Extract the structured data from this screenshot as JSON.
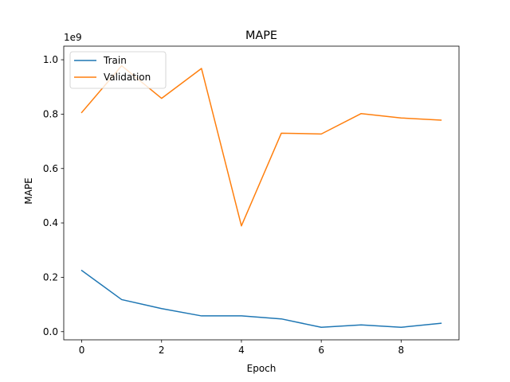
{
  "chart_data": {
    "type": "line",
    "title": "MAPE",
    "xlabel": "Epoch",
    "ylabel": "MAPE",
    "y_offset_label": "1e9",
    "x": [
      0,
      1,
      2,
      3,
      4,
      5,
      6,
      7,
      8,
      9
    ],
    "xlim": [
      -0.45,
      9.45
    ],
    "ylim": [
      -0.03,
      1.05
    ],
    "x_ticks": [
      0,
      2,
      4,
      6,
      8
    ],
    "x_tick_labels": [
      "0",
      "2",
      "4",
      "6",
      "8"
    ],
    "y_ticks": [
      0.0,
      0.2,
      0.4,
      0.6,
      0.8,
      1.0
    ],
    "y_tick_labels": [
      "0.0",
      "0.2",
      "0.4",
      "0.6",
      "0.8",
      "1.0"
    ],
    "y_unit_multiplier": 1000000000,
    "grid": false,
    "legend_position": "upper left",
    "series": [
      {
        "name": "Train",
        "color": "#1f77b4",
        "values": [
          0.225,
          0.118,
          0.085,
          0.058,
          0.058,
          0.047,
          0.016,
          0.025,
          0.016,
          0.031
        ]
      },
      {
        "name": "Validation",
        "color": "#ff7f0e",
        "values": [
          0.806,
          0.978,
          0.858,
          0.968,
          0.389,
          0.73,
          0.727,
          0.802,
          0.786,
          0.778
        ]
      }
    ]
  }
}
